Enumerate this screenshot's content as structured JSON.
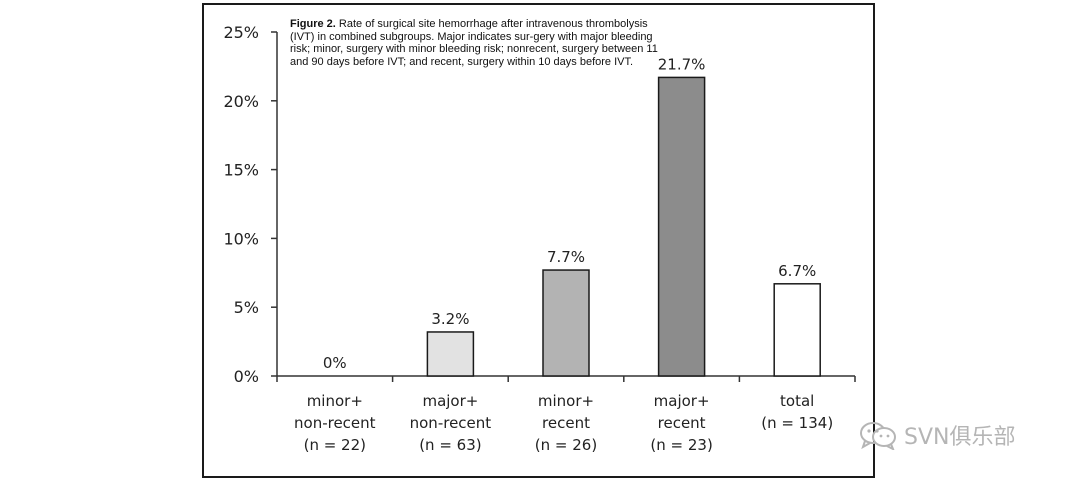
{
  "caption": {
    "figure_label": "Figure 2.",
    "text": "Rate of surgical site hemorrhage after intravenous thrombolysis (IVT) in combined subgroups. Major indicates sur-gery with major bleeding risk; minor, surgery with minor bleeding risk; nonrecent, surgery between 11 and 90 days before IVT; and recent, surgery within 10 days before IVT."
  },
  "watermark": {
    "text": "SVN俱乐部",
    "icon": "wechat-icon"
  },
  "chart_data": {
    "type": "bar",
    "title": "",
    "xlabel": "",
    "ylabel": "",
    "ylim": [
      0,
      25
    ],
    "yticks": [
      0,
      5,
      10,
      15,
      20,
      25
    ],
    "ytick_labels": [
      "0%",
      "5%",
      "10%",
      "15%",
      "20%",
      "25%"
    ],
    "grid": false,
    "legend": "none",
    "categories": [
      [
        "minor+",
        "non-recent",
        "(n = 22)"
      ],
      [
        "major+",
        "non-recent",
        "(n = 63)"
      ],
      [
        "minor+",
        "recent",
        "(n = 26)"
      ],
      [
        "major+",
        "recent",
        "(n = 23)"
      ],
      [
        "total",
        "(n = 134)"
      ]
    ],
    "values": [
      0,
      3.2,
      7.7,
      21.7,
      6.7
    ],
    "value_labels": [
      "0%",
      "3.2%",
      "7.7%",
      "21.7%",
      "6.7%"
    ],
    "bar_colors": [
      "#ffffff",
      "#e2e2e2",
      "#b3b3b3",
      "#8c8c8c",
      "#ffffff"
    ]
  }
}
